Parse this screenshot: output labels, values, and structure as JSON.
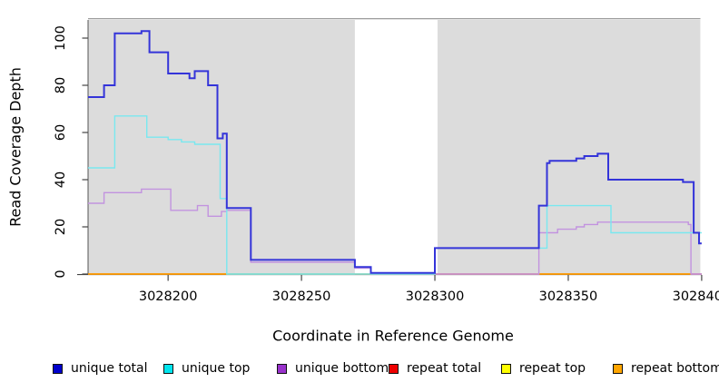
{
  "chart_data": {
    "type": "line",
    "subtype": "step-coverage-plot",
    "title": "",
    "xlabel": "Coordinate in Reference Genome",
    "ylabel": "Read Coverage Depth",
    "xlim": [
      3028170,
      3028400
    ],
    "ylim": [
      0,
      107
    ],
    "x_ticks": [
      3028200,
      3028250,
      3028300,
      3028350,
      3028400
    ],
    "y_ticks": [
      0,
      20,
      40,
      60,
      80,
      100
    ],
    "grid": false,
    "legend_position": "bottom",
    "colors": {
      "plot_band": "#DCDCDC",
      "top_border": "#9A9A9A",
      "axis": "#444444",
      "text": "#000000"
    },
    "background_bands": [
      {
        "from": 3028170,
        "to": 3028270,
        "color": "#DCDCDC"
      },
      {
        "from": 3028301,
        "to": 3028399.5,
        "color": "#DCDCDC"
      }
    ],
    "series": [
      {
        "name": "unique total",
        "color": "#3434D9",
        "legend_color": "#0000CC",
        "width": 2,
        "end": 3028400,
        "step_points": [
          [
            3028170,
            75
          ],
          [
            3028176,
            80
          ],
          [
            3028180,
            102
          ],
          [
            3028190,
            103
          ],
          [
            3028193,
            94
          ],
          [
            3028200,
            85
          ],
          [
            3028208,
            83
          ],
          [
            3028210,
            86
          ],
          [
            3028215,
            80
          ],
          [
            3028218.5,
            57.5
          ],
          [
            3028220.5,
            59.5
          ],
          [
            3028222,
            28
          ],
          [
            3028231,
            6
          ],
          [
            3028270,
            3
          ],
          [
            3028276,
            0.5
          ],
          [
            3028300,
            11
          ],
          [
            3028339,
            29
          ],
          [
            3028342,
            47
          ],
          [
            3028343,
            48
          ],
          [
            3028353,
            49
          ],
          [
            3028356,
            50
          ],
          [
            3028361,
            51
          ],
          [
            3028365,
            40
          ],
          [
            3028393,
            39
          ],
          [
            3028397,
            17.5
          ],
          [
            3028399,
            13
          ]
        ]
      },
      {
        "name": "unique top",
        "color": "#79E8EF",
        "legend_color": "#00E5EE",
        "width": 1.4,
        "end": 3028400,
        "step_points": [
          [
            3028170,
            45
          ],
          [
            3028180,
            67
          ],
          [
            3028192,
            58
          ],
          [
            3028200,
            57
          ],
          [
            3028205,
            56
          ],
          [
            3028210,
            55
          ],
          [
            3028219.5,
            32
          ],
          [
            3028222,
            0
          ],
          [
            3028300,
            11
          ],
          [
            3028342,
            29
          ],
          [
            3028366,
            17.5
          ]
        ]
      },
      {
        "name": "unique bottom",
        "color": "#C293DF",
        "legend_color": "#9932CC",
        "width": 1.4,
        "end": 3028400,
        "step_points": [
          [
            3028170,
            30
          ],
          [
            3028176,
            34.5
          ],
          [
            3028190,
            36
          ],
          [
            3028201,
            27
          ],
          [
            3028211,
            29
          ],
          [
            3028215,
            24.5
          ],
          [
            3028220,
            26.5
          ],
          [
            3028222,
            27
          ],
          [
            3028231,
            5
          ],
          [
            3028270,
            2.5
          ],
          [
            3028276,
            0
          ],
          [
            3028339,
            17.5
          ],
          [
            3028346,
            19
          ],
          [
            3028353,
            20
          ],
          [
            3028356,
            21
          ],
          [
            3028361,
            22
          ],
          [
            3028395,
            21
          ],
          [
            3028396,
            0
          ]
        ]
      },
      {
        "name": "repeat total",
        "color": "#DD0000",
        "legend_color": "#EE0000",
        "width": 1.2,
        "end": 3028400,
        "step_points": [
          [
            3028170,
            0
          ]
        ]
      },
      {
        "name": "repeat top",
        "color": "#F5F500",
        "legend_color": "#FFFF00",
        "width": 1.2,
        "end": 3028400,
        "step_points": [
          [
            3028170,
            0
          ]
        ]
      },
      {
        "name": "repeat bottom",
        "color": "#FF9A00",
        "legend_color": "#FFA500",
        "width": 1.2,
        "end": 3028400,
        "step_points": [
          [
            3028170,
            0
          ]
        ]
      }
    ],
    "baseline_blend_segments": [
      {
        "from": 3028170,
        "to": 3028222,
        "color": "#FF9A00"
      },
      {
        "from": 3028222,
        "to": 3028270,
        "color": "#9CC89C"
      },
      {
        "from": 3028300,
        "to": 3028339,
        "color": "#E58C8C"
      },
      {
        "from": 3028339,
        "to": 3028396,
        "color": "#FF9A00"
      },
      {
        "from": 3028396,
        "to": 3028400,
        "color": "#DA86B8"
      }
    ]
  }
}
